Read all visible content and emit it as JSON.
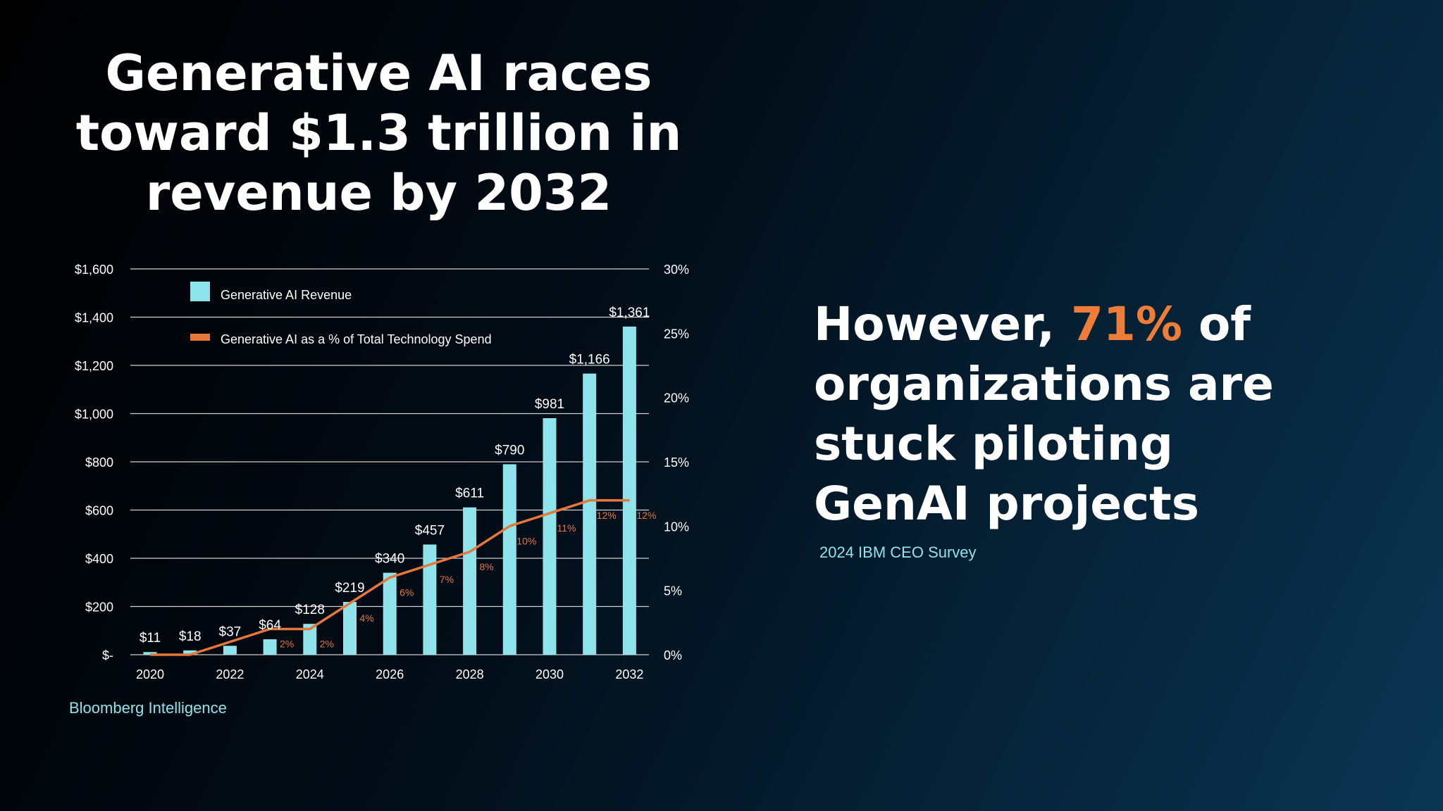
{
  "slide": {
    "title": "Generative AI races toward $1.3 trillion in revenue by 2032",
    "source": "Bloomberg Intelligence",
    "callout_before": "However, ",
    "callout_highlight": "71%",
    "callout_after": " of organizations are stuck piloting GenAI projects",
    "callout_source": "2024 IBM CEO Survey"
  },
  "colors": {
    "bar": "#8fe3ea",
    "line": "#e5773a",
    "gridline": "#d0d0d0",
    "highlight": "#ee7d3a",
    "source_text": "#8fe3ea"
  },
  "chart_data": {
    "type": "bar",
    "x": [
      2020,
      2021,
      2022,
      2023,
      2024,
      2025,
      2026,
      2027,
      2028,
      2029,
      2030,
      2031,
      2032
    ],
    "x_tick_labels": [
      "2020",
      "2022",
      "2024",
      "2026",
      "2028",
      "2030",
      "2032"
    ],
    "x_tick_values": [
      2020,
      2022,
      2024,
      2026,
      2028,
      2030,
      2032
    ],
    "y_left_ticks": [
      "$-",
      "$200",
      "$400",
      "$600",
      "$800",
      "$1,000",
      "$1,200",
      "$1,400",
      "$1,600"
    ],
    "y_left_tick_values": [
      0,
      200,
      400,
      600,
      800,
      1000,
      1200,
      1400,
      1600
    ],
    "y_right_ticks": [
      "0%",
      "5%",
      "10%",
      "15%",
      "20%",
      "25%",
      "30%"
    ],
    "y_right_tick_values": [
      0,
      5,
      10,
      15,
      20,
      25,
      30
    ],
    "ylim": [
      0,
      1600
    ],
    "ylim_right": [
      0,
      30
    ],
    "grid": true,
    "legend_position": "top-left",
    "series": [
      {
        "name": "Generative AI Revenue",
        "type": "bar",
        "axis": "left",
        "values": [
          11,
          18,
          37,
          64,
          128,
          219,
          340,
          457,
          611,
          790,
          981,
          1166,
          1361
        ],
        "labels": [
          "$11",
          "$18",
          "$37",
          "$64",
          "$128",
          "$219",
          "$340",
          "$457",
          "$611",
          "$790",
          "$981",
          "$1,166",
          "$1,361"
        ]
      },
      {
        "name": "Generative AI as a % of Total Technology Spend",
        "type": "line",
        "axis": "right",
        "values": [
          0,
          0,
          1,
          2,
          2,
          4,
          6,
          7,
          8,
          10,
          11,
          12,
          12
        ],
        "labels": [
          "",
          "",
          "",
          "2%",
          "2%",
          "4%",
          "6%",
          "7%",
          "8%",
          "10%",
          "11%",
          "12%",
          "12%"
        ]
      }
    ]
  }
}
